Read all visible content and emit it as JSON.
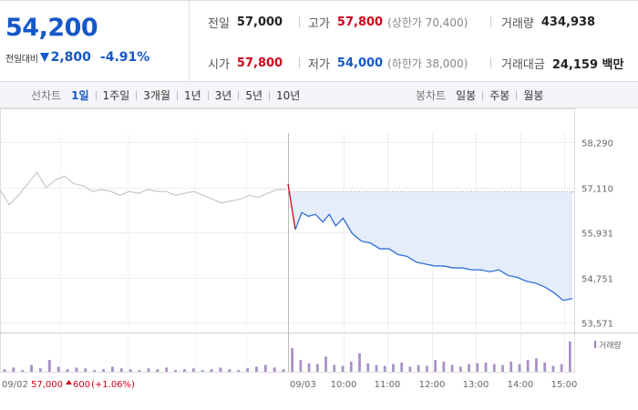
{
  "price": {
    "current": "54,200",
    "change_label": "전일대비",
    "change_amount": "2,800",
    "change_percent": "-4.91%",
    "direction": "down"
  },
  "stats": {
    "prev_close": {
      "label": "전일",
      "value": "57,000"
    },
    "high": {
      "label": "고가",
      "value": "57,800",
      "limit_text": "(상한가 70,400)"
    },
    "volume": {
      "label": "거래량",
      "value": "434,938"
    },
    "open": {
      "label": "시가",
      "value": "57,800"
    },
    "low": {
      "label": "저가",
      "value": "54,000",
      "limit_text": "(하한가 38,000)"
    },
    "amount": {
      "label": "거래대금",
      "value": "24,159 백만"
    }
  },
  "toolbar": {
    "line_chart_label": "선차트",
    "line_periods": [
      "1일",
      "1주일",
      "3개월",
      "1년",
      "3년",
      "5년",
      "10년"
    ],
    "active_period": "1일",
    "candle_chart_label": "봉차트",
    "candle_periods": [
      "일봉",
      "주봉",
      "월봉"
    ]
  },
  "colors": {
    "up": "#d0021b",
    "down": "#1558c9",
    "prev_line": "#c8c8c8",
    "today_line": "#2f6fd6",
    "fill": "#e5edfa",
    "volume_bar": "#9b7cc0"
  },
  "chart_data": {
    "type": "line",
    "y_ticks": [
      "58,290",
      "57,110",
      "55,931",
      "54,751",
      "53,571"
    ],
    "ylim": [
      53571,
      58290
    ],
    "ref_line": 57000,
    "x_ticks_prev": [
      "09/02"
    ],
    "x_ticks_today": [
      "09/03",
      "10:00",
      "11:00",
      "12:00",
      "13:00",
      "14:00",
      "15:00"
    ],
    "prev_day_summary": {
      "date": "09/02",
      "close": "57,000",
      "change": "600",
      "change_pct": "(+1.06%)"
    },
    "volume_legend": "거래량",
    "series": [
      {
        "name": "09/02",
        "x": [
          0,
          10,
          20,
          30,
          40,
          50,
          60,
          70,
          80,
          90,
          100,
          110,
          120,
          130,
          140,
          150,
          160,
          170,
          180,
          190,
          200,
          210,
          220,
          230,
          240,
          250,
          260,
          270,
          280,
          290,
          300,
          310
        ],
        "values": [
          57050,
          56650,
          56900,
          57200,
          57500,
          57100,
          57300,
          57400,
          57200,
          57150,
          57000,
          57050,
          57000,
          56900,
          57000,
          56950,
          57050,
          57000,
          57000,
          56900,
          56950,
          57000,
          56900,
          56800,
          56700,
          56750,
          56800,
          56900,
          56850,
          56950,
          57050,
          57050
        ]
      },
      {
        "name": "09/03",
        "x": [
          0,
          8,
          15,
          22,
          30,
          38,
          45,
          52,
          60,
          70,
          80,
          90,
          100,
          110,
          120,
          130,
          140,
          150,
          160,
          170,
          180,
          190,
          200,
          210,
          220,
          230,
          240,
          250,
          260,
          270,
          280,
          290,
          300,
          310
        ],
        "values": [
          57200,
          56000,
          56450,
          56350,
          56400,
          56200,
          56400,
          56100,
          56300,
          55900,
          55700,
          55650,
          55500,
          55500,
          55350,
          55300,
          55150,
          55100,
          55050,
          55050,
          55000,
          55000,
          54950,
          54950,
          54900,
          54950,
          54800,
          54750,
          54650,
          54600,
          54500,
          54350,
          54150,
          54200
        ]
      }
    ],
    "volume": {
      "prev": [
        3,
        5,
        2,
        8,
        4,
        14,
        6,
        3,
        5,
        4,
        2,
        3,
        6,
        4,
        3,
        2,
        4,
        3,
        5,
        2,
        3,
        4,
        2,
        3,
        5,
        3,
        2,
        4,
        6,
        8,
        5,
        3
      ],
      "today": [
        28,
        14,
        10,
        9,
        18,
        8,
        7,
        12,
        22,
        10,
        8,
        7,
        9,
        11,
        6,
        8,
        7,
        14,
        12,
        8,
        6,
        9,
        10,
        11,
        9,
        8,
        12,
        9,
        14,
        16,
        11,
        7,
        9,
        36
      ]
    }
  }
}
